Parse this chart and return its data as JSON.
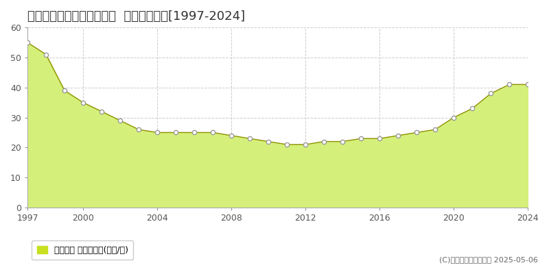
{
  "title": "札幌市手稲区手稲本町一条  基準地価推移[1997-2024]",
  "years": [
    1997,
    1998,
    1999,
    2000,
    2001,
    2002,
    2003,
    2004,
    2005,
    2006,
    2007,
    2008,
    2009,
    2010,
    2011,
    2012,
    2013,
    2014,
    2015,
    2016,
    2017,
    2018,
    2019,
    2020,
    2021,
    2022,
    2023,
    2024
  ],
  "values": [
    55,
    51,
    39,
    35,
    32,
    29,
    26,
    25,
    25,
    25,
    25,
    24,
    23,
    22,
    21,
    21,
    22,
    22,
    23,
    23,
    24,
    25,
    26,
    30,
    33,
    38,
    41,
    41
  ],
  "fill_color": "#d4f07a",
  "line_color": "#909000",
  "marker_face_color": "#ffffff",
  "marker_edge_color": "#999999",
  "bg_color": "#ffffff",
  "plot_bg_color": "#ffffff",
  "grid_color": "#cccccc",
  "ylim": [
    0,
    60
  ],
  "yticks": [
    0,
    10,
    20,
    30,
    40,
    50,
    60
  ],
  "xticks": [
    1997,
    2000,
    2004,
    2008,
    2012,
    2016,
    2020,
    2024
  ],
  "legend_label": "基準地価 平均坪単価(万円/坪)",
  "legend_color": "#c8e020",
  "copyright": "(C)土地価格ドットコム 2025-05-06",
  "title_fontsize": 13,
  "tick_fontsize": 9,
  "legend_fontsize": 9,
  "copyright_fontsize": 8
}
